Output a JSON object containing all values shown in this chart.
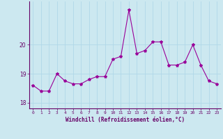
{
  "x": [
    0,
    1,
    2,
    3,
    4,
    5,
    6,
    7,
    8,
    9,
    10,
    11,
    12,
    13,
    14,
    15,
    16,
    17,
    18,
    19,
    20,
    21,
    22,
    23
  ],
  "y": [
    18.6,
    18.4,
    18.4,
    19.0,
    18.75,
    18.65,
    18.65,
    18.8,
    18.9,
    18.9,
    19.5,
    19.6,
    21.2,
    19.7,
    19.8,
    20.1,
    20.1,
    19.3,
    19.3,
    19.4,
    20.0,
    19.3,
    18.75,
    18.65
  ],
  "line_color": "#990099",
  "marker": "*",
  "marker_size": 3,
  "bg_color": "#cce8f0",
  "grid_color": "#b0d8e8",
  "xlabel": "Windchill (Refroidissement éolien,°C)",
  "xlabel_color": "#660066",
  "tick_color": "#660066",
  "axis_color": "#660066",
  "ylim": [
    17.8,
    21.5
  ],
  "yticks": [
    18,
    19,
    20
  ],
  "xlim": [
    -0.5,
    23.5
  ],
  "xticks": [
    0,
    1,
    2,
    3,
    4,
    5,
    6,
    7,
    8,
    9,
    10,
    11,
    12,
    13,
    14,
    15,
    16,
    17,
    18,
    19,
    20,
    21,
    22,
    23
  ]
}
